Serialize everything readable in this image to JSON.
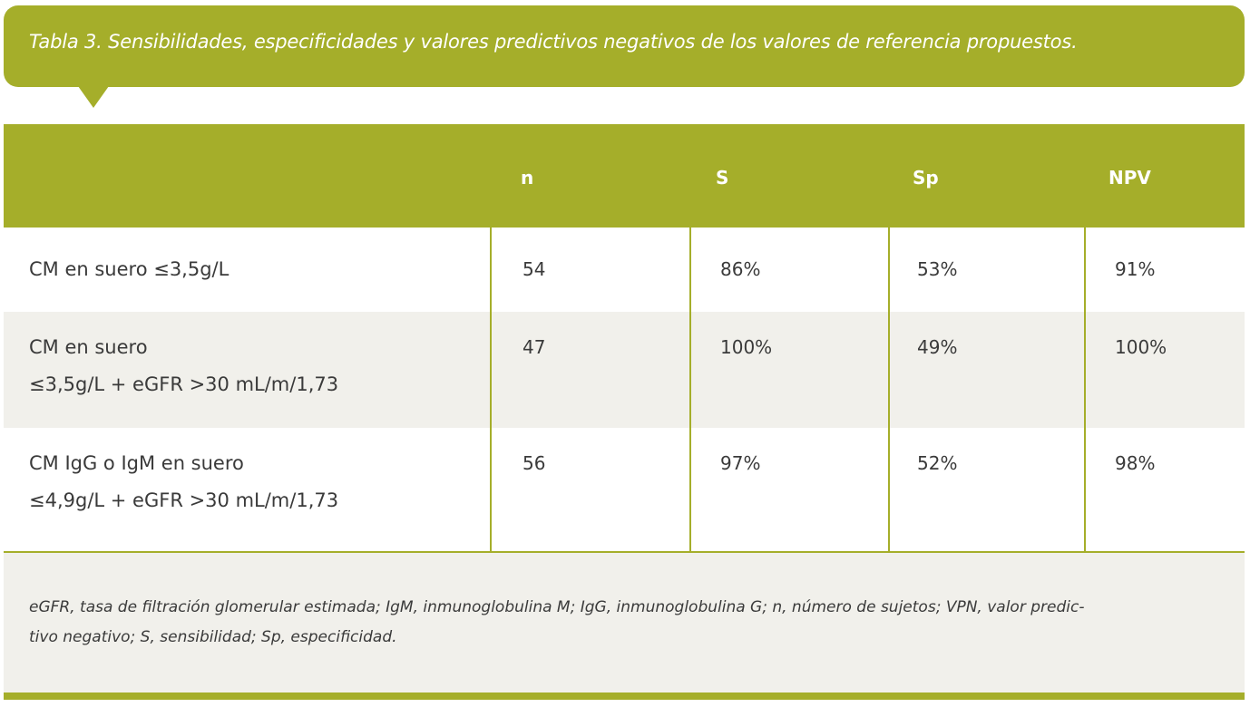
{
  "title": "Tabla 3. Sensibilidades, especificidades y valores predictivos negativos de los valores de referencia propuestos.",
  "columns": [
    "n",
    "S",
    "Sp",
    "NPV"
  ],
  "rows": [
    {
      "label": [
        "CM en suero ≤3,5g/L"
      ],
      "n": "54",
      "s": "86%",
      "sp": "53%",
      "npv": "91%"
    },
    {
      "label": [
        "CM en suero",
        "≤3,5g/L + eGFR >30 mL/m/1,73"
      ],
      "n": "47",
      "s": "100%",
      "sp": "49%",
      "npv": "100%"
    },
    {
      "label": [
        "CM IgG o IgM en suero",
        "≤4,9g/L + eGFR >30 mL/m/1,73"
      ],
      "n": "56",
      "s": "97%",
      "sp": "52%",
      "npv": "98%"
    }
  ],
  "footnote": [
    "eGFR, tasa de filtración glomerular estimada; IgM, inmunoglobulina M; IgG, inmunoglobulina G; n, número de sujetos; VPN, valor predic-",
    "tivo negativo; S, sensibilidad; Sp, especificidad."
  ],
  "colors": {
    "accent": "#a5ae2a",
    "stripe": "#f1f0eb",
    "text": "#3a3a3a"
  }
}
